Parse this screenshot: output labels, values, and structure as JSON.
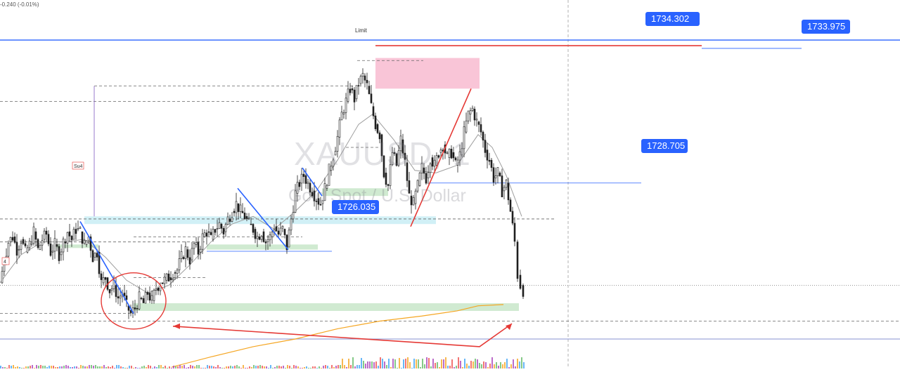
{
  "header": {
    "change_text": "-0.240 (-0.01%)"
  },
  "watermark": {
    "symbol": "XAUUSD, 1",
    "description": "Gold Spot / U.S. Dollar"
  },
  "labels": {
    "limit": "Limit",
    "su4": "Su4",
    "left_marker": "4"
  },
  "price_tags": [
    {
      "id": "1734302",
      "value": "1734.302",
      "color": "#2962ff"
    },
    {
      "id": "1733975",
      "value": "1733.975",
      "color": "#2962ff"
    },
    {
      "id": "1728705",
      "value": "1728.705",
      "color": "#2962ff"
    },
    {
      "id": "1726035",
      "value": "1726.035",
      "color": "#2962ff"
    }
  ],
  "colors": {
    "candle": "#1f1f1f",
    "trend_blue": "#2962ff",
    "trend_red": "#e53935",
    "annotation_red": "#e53935",
    "zone_green": "#c8e6c9",
    "zone_cyan": "#c9edf5",
    "zone_pink": "#f8bbd0",
    "ma_orange": "#f5a623",
    "ma_grey": "#9e9e9e"
  },
  "chart_data": {
    "type": "candlestick",
    "symbol": "XAUUSD",
    "timeframe": "1",
    "ylim": [
      1722.6,
      1735.1
    ],
    "price_lines": [
      1734.302,
      1733.975,
      1728.705,
      1726.035
    ],
    "close_path": [
      [
        0,
        1724.8
      ],
      [
        6,
        1725.7
      ],
      [
        12,
        1726.4
      ],
      [
        18,
        1726.6
      ],
      [
        24,
        1726.1
      ],
      [
        30,
        1726.5
      ],
      [
        36,
        1726.0
      ],
      [
        42,
        1726.3
      ],
      [
        48,
        1726.8
      ],
      [
        54,
        1726.1
      ],
      [
        60,
        1726.5
      ],
      [
        66,
        1726.7
      ],
      [
        72,
        1726.0
      ],
      [
        78,
        1726.3
      ],
      [
        84,
        1725.9
      ],
      [
        90,
        1726.4
      ],
      [
        96,
        1726.8
      ],
      [
        102,
        1726.5
      ],
      [
        108,
        1726.9
      ],
      [
        114,
        1726.8
      ],
      [
        120,
        1726.3
      ],
      [
        126,
        1726.6
      ],
      [
        132,
        1725.8
      ],
      [
        138,
        1726.0
      ],
      [
        144,
        1724.8
      ],
      [
        150,
        1725.0
      ],
      [
        156,
        1724.5
      ],
      [
        162,
        1724.7
      ],
      [
        168,
        1724.2
      ],
      [
        174,
        1724.4
      ],
      [
        180,
        1723.9
      ],
      [
        186,
        1723.6
      ],
      [
        192,
        1723.8
      ],
      [
        198,
        1724.2
      ],
      [
        204,
        1724.0
      ],
      [
        210,
        1724.4
      ],
      [
        216,
        1724.1
      ],
      [
        222,
        1724.6
      ],
      [
        228,
        1724.8
      ],
      [
        234,
        1724.9
      ],
      [
        240,
        1725.0
      ],
      [
        246,
        1725.2
      ],
      [
        252,
        1725.3
      ],
      [
        258,
        1725.8
      ],
      [
        264,
        1726.1
      ],
      [
        270,
        1725.7
      ],
      [
        276,
        1726.3
      ],
      [
        282,
        1726.0
      ],
      [
        288,
        1726.6
      ],
      [
        294,
        1726.8
      ],
      [
        300,
        1726.5
      ],
      [
        306,
        1726.9
      ],
      [
        312,
        1727.1
      ],
      [
        318,
        1726.8
      ],
      [
        324,
        1727.3
      ],
      [
        330,
        1727.6
      ],
      [
        336,
        1727.9
      ],
      [
        342,
        1727.6
      ],
      [
        348,
        1727.4
      ],
      [
        354,
        1727.1
      ],
      [
        360,
        1726.9
      ],
      [
        366,
        1726.6
      ],
      [
        372,
        1726.8
      ],
      [
        378,
        1726.4
      ],
      [
        384,
        1726.6
      ],
      [
        390,
        1727.0
      ],
      [
        396,
        1726.7
      ],
      [
        402,
        1726.9
      ],
      [
        408,
        1726.2
      ],
      [
        414,
        1727.3
      ],
      [
        420,
        1728.3
      ],
      [
        426,
        1728.7
      ],
      [
        432,
        1729.0
      ],
      [
        438,
        1728.7
      ],
      [
        444,
        1728.4
      ],
      [
        450,
        1728.1
      ],
      [
        456,
        1727.9
      ],
      [
        462,
        1728.5
      ],
      [
        468,
        1729.2
      ],
      [
        474,
        1729.8
      ],
      [
        480,
        1730.5
      ],
      [
        486,
        1731.4
      ],
      [
        492,
        1731.9
      ],
      [
        498,
        1732.4
      ],
      [
        504,
        1732.0
      ],
      [
        510,
        1732.6
      ],
      [
        516,
        1732.9
      ],
      [
        522,
        1732.5
      ],
      [
        528,
        1731.7
      ],
      [
        534,
        1731.0
      ],
      [
        540,
        1730.6
      ],
      [
        546,
        1729.1
      ],
      [
        552,
        1728.6
      ],
      [
        558,
        1729.9
      ],
      [
        564,
        1729.4
      ],
      [
        570,
        1730.4
      ],
      [
        576,
        1729.5
      ],
      [
        582,
        1728.2
      ],
      [
        588,
        1727.9
      ],
      [
        594,
        1728.6
      ],
      [
        600,
        1729.3
      ],
      [
        606,
        1728.9
      ],
      [
        612,
        1729.7
      ],
      [
        618,
        1729.4
      ],
      [
        624,
        1729.9
      ],
      [
        630,
        1730.2
      ],
      [
        636,
        1729.7
      ],
      [
        642,
        1729.9
      ],
      [
        648,
        1729.4
      ],
      [
        654,
        1729.8
      ],
      [
        660,
        1730.7
      ],
      [
        666,
        1731.4
      ],
      [
        672,
        1731.6
      ],
      [
        678,
        1731.1
      ],
      [
        684,
        1730.7
      ],
      [
        690,
        1730.0
      ],
      [
        696,
        1729.6
      ],
      [
        702,
        1728.9
      ],
      [
        708,
        1729.1
      ],
      [
        714,
        1728.4
      ],
      [
        720,
        1728.7
      ],
      [
        726,
        1727.6
      ],
      [
        732,
        1726.4
      ],
      [
        736,
        1725.1
      ],
      [
        740,
        1724.7
      ],
      [
        744,
        1724.5
      ]
    ],
    "swing_lines": [
      {
        "color": "blue",
        "points": [
          [
            114,
            1727.2
          ],
          [
            190,
            1723.6
          ]
        ]
      },
      {
        "color": "blue",
        "points": [
          [
            338,
            1728.5
          ],
          [
            410,
            1726.1
          ]
        ]
      },
      {
        "color": "blue",
        "points": [
          [
            430,
            1729.3
          ],
          [
            458,
            1728.2
          ]
        ]
      },
      {
        "color": "red",
        "points": [
          [
            584,
            1727.0
          ],
          [
            670,
            1732.4
          ]
        ]
      }
    ],
    "zones": [
      {
        "color": "pink",
        "x": [
          534,
          682
        ],
        "price": [
          1732.4,
          1733.6
        ]
      },
      {
        "color": "green",
        "x": [
          190,
          738
        ],
        "price": [
          1723.7,
          1724.0
        ]
      },
      {
        "color": "green",
        "x": [
          294,
          452
        ],
        "price": [
          1726.1,
          1726.3
        ]
      },
      {
        "color": "green",
        "x": [
          80,
          140
        ],
        "price": [
          1726.2,
          1726.3
        ]
      },
      {
        "color": "green",
        "x": [
          458,
          552
        ],
        "price": [
          1728.2,
          1728.5
        ]
      },
      {
        "color": "cyan",
        "x": [
          120,
          620
        ],
        "price": [
          1727.1,
          1727.4
        ]
      }
    ],
    "dashed_levels": [
      {
        "price": 1731.9,
        "x": [
          0,
          488
        ]
      },
      {
        "price": 1732.5,
        "x": [
          134,
          505
        ]
      },
      {
        "price": 1727.3,
        "x": [
          0,
          790
        ]
      },
      {
        "price": 1726.4,
        "x": [
          0,
          294
        ]
      },
      {
        "price": 1723.6,
        "x": [
          0,
          190
        ]
      },
      {
        "price": 1723.3,
        "x": [
          0,
          1280
        ]
      },
      {
        "price": 1733.5,
        "x": [
          508,
          602
        ]
      },
      {
        "price": 1730.1,
        "x": [
          492,
          540
        ]
      },
      {
        "price": 1726.6,
        "x": [
          190,
          430
        ]
      },
      {
        "price": 1725.0,
        "x": [
          190,
          294
        ]
      }
    ],
    "dotted_levels": [
      {
        "price": 1724.7,
        "x": [
          0,
          1280
        ]
      }
    ],
    "ma_orange": [
      [
        244,
        1721.5
      ],
      [
        300,
        1721.9
      ],
      [
        360,
        1722.3
      ],
      [
        420,
        1722.6
      ],
      [
        480,
        1723.0
      ],
      [
        540,
        1723.3
      ],
      [
        600,
        1723.5
      ],
      [
        650,
        1723.7
      ],
      [
        680,
        1723.9
      ],
      [
        716,
        1723.95
      ]
    ],
    "ma_grey": [
      [
        0,
        1724.8
      ],
      [
        30,
        1725.9
      ],
      [
        60,
        1726.4
      ],
      [
        90,
        1726.4
      ],
      [
        120,
        1726.5
      ],
      [
        150,
        1725.8
      ],
      [
        180,
        1724.9
      ],
      [
        210,
        1724.4
      ],
      [
        240,
        1724.7
      ],
      [
        270,
        1725.5
      ],
      [
        300,
        1726.4
      ],
      [
        330,
        1727.1
      ],
      [
        360,
        1727.4
      ],
      [
        390,
        1726.9
      ],
      [
        420,
        1727.6
      ],
      [
        450,
        1728.4
      ],
      [
        480,
        1729.6
      ],
      [
        510,
        1731.0
      ],
      [
        530,
        1731.4
      ],
      [
        560,
        1730.4
      ],
      [
        590,
        1729.2
      ],
      [
        620,
        1729.1
      ],
      [
        650,
        1729.4
      ],
      [
        680,
        1730.6
      ],
      [
        700,
        1730.1
      ],
      [
        720,
        1729.0
      ],
      [
        742,
        1727.4
      ]
    ],
    "annotations": {
      "circle": {
        "center": [
          190,
          1724.2
        ],
        "radius_price": 1.1,
        "radius_x": 46
      },
      "arrow_path": [
        [
          246,
          1723.1
        ],
        [
          682,
          1722.3
        ],
        [
          728,
          1723.2
        ]
      ]
    }
  }
}
